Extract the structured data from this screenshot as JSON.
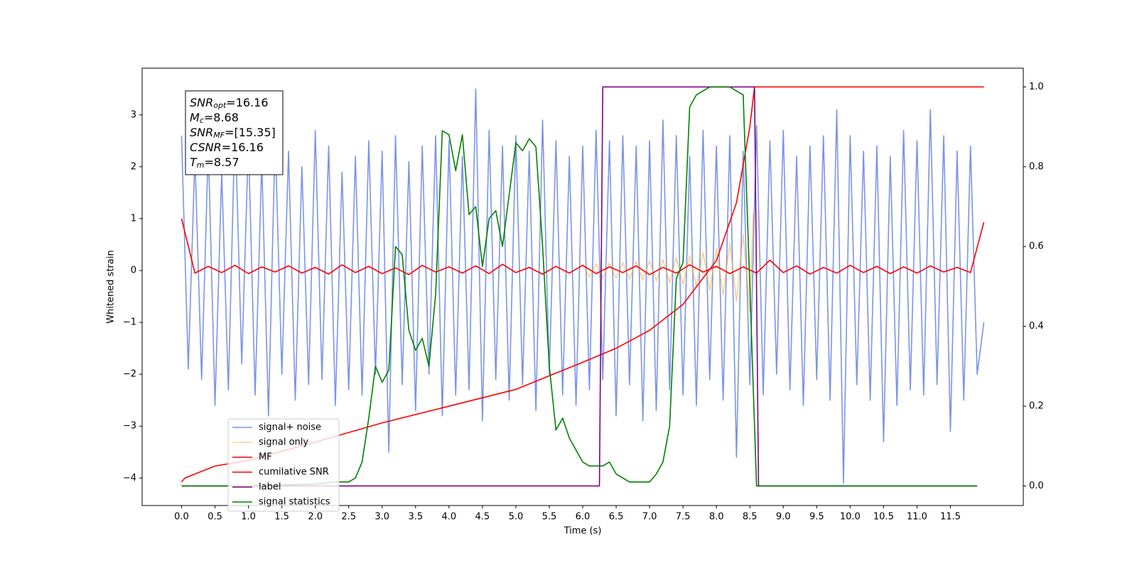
{
  "chart_data": {
    "type": "line",
    "xlabel": "Time (s)",
    "ylabel": "Whitened strain",
    "xlim": [
      -0.59,
      12.59
    ],
    "ylim": [
      -4.53,
      3.9
    ],
    "y2lim": [
      -0.049,
      1.047
    ],
    "xticks": [
      {
        "value": 0,
        "label": "0.0"
      },
      0.5,
      {
        "value": 1,
        "label": "1.0"
      },
      1.5,
      {
        "value": 2,
        "label": "2.0"
      },
      2.5,
      {
        "value": 3,
        "label": "3.0"
      },
      3.5,
      {
        "value": 4,
        "label": "4.0"
      },
      4.5,
      {
        "value": 5,
        "label": "5.0"
      },
      5.5,
      {
        "value": 6,
        "label": "6.0"
      },
      6.5,
      {
        "value": 7,
        "label": "7.0"
      },
      7.5,
      {
        "value": 8,
        "label": "8.0"
      },
      8.5,
      {
        "value": 9,
        "label": "9.0"
      },
      9.5,
      {
        "value": 10,
        "label": "10.0"
      },
      10.5,
      {
        "value": 11,
        "label": "11.0"
      },
      11.5
    ],
    "yticks": [
      {
        "value": -4,
        "label": "−4"
      },
      {
        "value": -3,
        "label": "−3"
      },
      {
        "value": -2,
        "label": "−2"
      },
      {
        "value": -1,
        "label": "−1"
      },
      0,
      1,
      2,
      3
    ],
    "y2ticks": [
      {
        "value": 0,
        "label": "0.0"
      },
      0.2,
      0.4,
      0.6,
      0.8,
      {
        "value": 1,
        "label": "1.0"
      }
    ],
    "legend": "lower left",
    "annotations": [
      {
        "symbol": "SNR",
        "subscript": "opt",
        "text": "=16.16"
      },
      {
        "symbol": "M",
        "subscript": "c",
        "text": "=8.68"
      },
      {
        "symbol": "SNR",
        "subscript": "MF",
        "text": "=[15.35]"
      },
      {
        "symbol": "CSNR",
        "subscript": "",
        "text": "=16.16"
      },
      {
        "symbol": "T",
        "subscript": "m",
        "text": "=8.57"
      }
    ],
    "series": [
      {
        "name": "signal+ noise",
        "color": "#6b88e6",
        "opacity": 0.9,
        "x": [
          0,
          0.1,
          0.2,
          0.3,
          0.4,
          0.5,
          0.6,
          0.7,
          0.8,
          0.9,
          1,
          1.1,
          1.2,
          1.3,
          1.4,
          1.5,
          1.6,
          1.7,
          1.8,
          1.9,
          2,
          2.1,
          2.2,
          2.3,
          2.4,
          2.5,
          2.6,
          2.7,
          2.8,
          2.9,
          3,
          3.1,
          3.2,
          3.3,
          3.4,
          3.5,
          3.6,
          3.7,
          3.8,
          3.9,
          4,
          4.1,
          4.2,
          4.3,
          4.4,
          4.5,
          4.6,
          4.7,
          4.8,
          4.9,
          5,
          5.1,
          5.2,
          5.3,
          5.4,
          5.5,
          5.6,
          5.7,
          5.8,
          5.9,
          6,
          6.1,
          6.2,
          6.3,
          6.4,
          6.5,
          6.6,
          6.7,
          6.8,
          6.9,
          7,
          7.1,
          7.2,
          7.3,
          7.4,
          7.5,
          7.6,
          7.7,
          7.8,
          7.9,
          8,
          8.1,
          8.2,
          8.3,
          8.4,
          8.5,
          8.6,
          8.7,
          8.8,
          8.9,
          9,
          9.1,
          9.2,
          9.3,
          9.4,
          9.5,
          9.6,
          9.7,
          9.8,
          9.9,
          10,
          10.1,
          10.2,
          10.3,
          10.4,
          10.5,
          10.6,
          10.7,
          10.8,
          10.9,
          11,
          11.1,
          11.2,
          11.3,
          11.4,
          11.5,
          11.6,
          11.7,
          11.8,
          11.9,
          12
        ],
        "values": [
          2.6,
          -1.9,
          2.2,
          -2.1,
          2.4,
          -2.6,
          1.9,
          -2.3,
          2.9,
          -1.8,
          2.5,
          -2.4,
          2.1,
          -2.8,
          2.6,
          -2.0,
          2.3,
          -2.5,
          2.0,
          -2.2,
          2.7,
          -2.1,
          2.4,
          -2.6,
          1.9,
          -2.3,
          2.2,
          -2.4,
          2.5,
          -2.0,
          2.3,
          -3.5,
          2.6,
          -2.2,
          2.1,
          -2.7,
          2.4,
          -2.0,
          2.6,
          -2.8,
          2.5,
          -2.4,
          2.2,
          -2.3,
          3.5,
          -2.9,
          2.7,
          -2.1,
          2.4,
          -2.5,
          2.6,
          -2.2,
          2.3,
          -2.7,
          2.9,
          -2.0,
          2.5,
          -2.4,
          2.2,
          -2.6,
          2.4,
          -2.3,
          2.7,
          -2.1,
          2.5,
          -2.8,
          2.6,
          -2.2,
          2.4,
          -2.9,
          2.5,
          -2.7,
          2.9,
          -2.3,
          2.6,
          -2.4,
          2.2,
          -2.6,
          2.7,
          -2.1,
          2.4,
          -2.5,
          2.6,
          -3.6,
          2.3,
          -2.2,
          2.8,
          -2.4,
          2.5,
          -2.0,
          2.7,
          -2.3,
          2.2,
          -2.6,
          2.4,
          -2.1,
          2.6,
          -2.5,
          3.1,
          -4.1,
          2.6,
          -2.2,
          2.3,
          -2.5,
          2.4,
          -3.3,
          2.2,
          -2.6,
          2.7,
          -2.3,
          2.5,
          -2.4,
          3.1,
          -2.2,
          2.6,
          -3.1,
          2.3,
          -2.5,
          2.4,
          -2.0,
          -1.0
        ]
      },
      {
        "name": "signal only",
        "color": "#f5b041",
        "opacity": 0.6,
        "x": [
          6,
          6.1,
          6.2,
          6.3,
          6.4,
          6.5,
          6.6,
          6.7,
          6.8,
          6.9,
          7,
          7.1,
          7.2,
          7.3,
          7.4,
          7.5,
          7.6,
          7.7,
          7.8,
          7.9,
          8,
          8.1,
          8.2,
          8.3,
          8.4,
          8.5,
          8.55
        ],
        "values": [
          0.12,
          -0.13,
          0.13,
          -0.14,
          0.14,
          -0.15,
          0.15,
          -0.16,
          0.17,
          -0.18,
          0.19,
          -0.2,
          0.21,
          -0.23,
          0.25,
          -0.27,
          0.29,
          -0.32,
          0.35,
          -0.38,
          0.42,
          -0.47,
          0.53,
          -0.6,
          0.7,
          -0.8,
          1.1
        ]
      },
      {
        "name": "MF",
        "color": "#ff0000",
        "opacity": 1,
        "x": [
          0,
          0.2,
          0.4,
          0.6,
          0.8,
          1,
          1.2,
          1.4,
          1.6,
          1.8,
          2,
          2.2,
          2.4,
          2.6,
          2.8,
          3,
          3.2,
          3.4,
          3.6,
          3.8,
          4,
          4.2,
          4.4,
          4.6,
          4.8,
          5,
          5.2,
          5.4,
          5.6,
          5.8,
          6,
          6.2,
          6.4,
          6.6,
          6.8,
          7,
          7.2,
          7.4,
          7.6,
          7.8,
          8,
          8.2,
          8.4,
          8.6,
          8.8,
          9,
          9.2,
          9.4,
          9.6,
          9.8,
          10,
          10.2,
          10.4,
          10.6,
          10.8,
          11,
          11.2,
          11.4,
          11.6,
          11.8,
          12
        ],
        "values": [
          1.0,
          -0.05,
          0.08,
          -0.04,
          0.1,
          -0.06,
          0.07,
          -0.03,
          0.09,
          -0.05,
          0.06,
          -0.07,
          0.11,
          -0.04,
          0.08,
          -0.06,
          0.05,
          -0.08,
          0.1,
          -0.03,
          0.07,
          -0.05,
          0.09,
          -0.06,
          0.12,
          -0.04,
          0.06,
          -0.07,
          0.08,
          -0.05,
          0.1,
          -0.06,
          0.07,
          -0.04,
          0.09,
          -0.08,
          0.06,
          -0.05,
          0.11,
          -0.03,
          0.08,
          -0.06,
          0.07,
          -0.05,
          0.2,
          -0.04,
          0.09,
          -0.07,
          0.06,
          -0.05,
          0.1,
          -0.04,
          0.08,
          -0.06,
          0.07,
          -0.05,
          0.09,
          -0.03,
          0.06,
          -0.04,
          0.93
        ]
      },
      {
        "name": "cumilative SNR",
        "color": "#ff0000",
        "opacity": 1,
        "axis": "y2",
        "x": [
          0,
          0.05,
          0.5,
          1,
          2,
          3,
          4,
          5,
          6,
          6.5,
          7,
          7.5,
          8,
          8.3,
          8.5,
          8.57,
          12
        ],
        "values": [
          0.01,
          0.02,
          0.05,
          0.064,
          0.11,
          0.158,
          0.2,
          0.242,
          0.31,
          0.345,
          0.39,
          0.455,
          0.565,
          0.71,
          0.9,
          1.0,
          1.0
        ]
      },
      {
        "name": "label",
        "color": "#800080",
        "opacity": 1,
        "axis": "y2",
        "x": [
          0,
          6.25,
          6.3,
          8.57,
          8.63,
          11.9
        ],
        "values": [
          0,
          0,
          1,
          1,
          0,
          0
        ]
      },
      {
        "name": "signal statistics",
        "color": "#008000",
        "opacity": 1,
        "axis": "y2",
        "x": [
          0,
          1,
          2,
          2.3,
          2.5,
          2.6,
          2.7,
          2.8,
          2.9,
          3.0,
          3.1,
          3.2,
          3.3,
          3.4,
          3.5,
          3.6,
          3.7,
          3.8,
          3.9,
          4.0,
          4.1,
          4.2,
          4.3,
          4.4,
          4.5,
          4.6,
          4.7,
          4.8,
          4.9,
          5.0,
          5.1,
          5.2,
          5.3,
          5.4,
          5.5,
          5.6,
          5.7,
          5.8,
          5.9,
          6.0,
          6.1,
          6.2,
          6.3,
          6.4,
          6.5,
          6.6,
          6.7,
          6.8,
          7.0,
          7.1,
          7.2,
          7.3,
          7.4,
          7.5,
          7.6,
          7.7,
          7.8,
          7.9,
          8.0,
          8.2,
          8.3,
          8.4,
          8.5,
          8.6,
          8.7,
          11.9
        ],
        "values": [
          0,
          0,
          0.005,
          0.01,
          0.01,
          0.02,
          0.06,
          0.17,
          0.3,
          0.26,
          0.29,
          0.6,
          0.58,
          0.39,
          0.34,
          0.37,
          0.3,
          0.48,
          0.89,
          0.88,
          0.79,
          0.88,
          0.68,
          0.7,
          0.55,
          0.67,
          0.69,
          0.6,
          0.73,
          0.86,
          0.84,
          0.87,
          0.85,
          0.6,
          0.3,
          0.14,
          0.17,
          0.12,
          0.09,
          0.06,
          0.05,
          0.05,
          0.05,
          0.06,
          0.03,
          0.02,
          0.01,
          0.01,
          0.01,
          0.03,
          0.06,
          0.15,
          0.52,
          0.56,
          0.95,
          0.98,
          0.99,
          1.0,
          1.0,
          1.0,
          0.99,
          0.98,
          0.5,
          0.0,
          0.0,
          0.0
        ]
      }
    ]
  }
}
